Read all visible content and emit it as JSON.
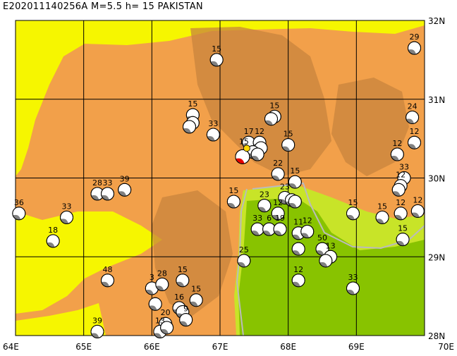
{
  "title": "E202011140256A  M=5.5  h=  15  PAKISTAN",
  "extent": {
    "lon": [
      64,
      70
    ],
    "lat": [
      28,
      32
    ]
  },
  "lon_ticks": [
    {
      "value": 64,
      "label": "64E"
    },
    {
      "value": 65,
      "label": "65E"
    },
    {
      "value": 66,
      "label": "66E"
    },
    {
      "value": 67,
      "label": "67E"
    },
    {
      "value": 68,
      "label": "68E"
    },
    {
      "value": 69,
      "label": "69E"
    },
    {
      "value": 70,
      "label": "70E"
    }
  ],
  "lat_ticks": [
    {
      "value": 32,
      "label": "32N"
    },
    {
      "value": 31,
      "label": "31N"
    },
    {
      "value": 30,
      "label": "30N"
    },
    {
      "value": 29,
      "label": "29N"
    },
    {
      "value": 28,
      "label": "28N"
    }
  ],
  "colors": {
    "lowland": "#f6f600",
    "upland": "#f2a04a",
    "mountain": "#c8843e",
    "valley": "#88c300",
    "valley_light": "#c8e428",
    "border": "#bbbbbb",
    "grid": "#000000",
    "main_event_fill": "#e60000",
    "main_event_marker": "#ffd800",
    "beachball_fill": "#808080"
  },
  "main_event": {
    "lon": 67.33,
    "lat": 30.27,
    "depth": "15"
  },
  "events": [
    {
      "lon": 69.85,
      "lat": 31.65,
      "label": "29"
    },
    {
      "lon": 66.95,
      "lat": 31.5,
      "label": "15"
    },
    {
      "lon": 66.6,
      "lat": 30.8,
      "label": "15"
    },
    {
      "lon": 66.6,
      "lat": 30.7,
      "label": ""
    },
    {
      "lon": 66.55,
      "lat": 30.65,
      "label": ""
    },
    {
      "lon": 66.9,
      "lat": 30.55,
      "label": "33"
    },
    {
      "lon": 67.8,
      "lat": 30.78,
      "label": "15"
    },
    {
      "lon": 67.75,
      "lat": 30.75,
      "label": ""
    },
    {
      "lon": 67.42,
      "lat": 30.45,
      "label": "17"
    },
    {
      "lon": 67.58,
      "lat": 30.45,
      "label": "12"
    },
    {
      "lon": 67.6,
      "lat": 30.38,
      "label": ""
    },
    {
      "lon": 67.48,
      "lat": 30.33,
      "label": ""
    },
    {
      "lon": 67.55,
      "lat": 30.3,
      "label": ""
    },
    {
      "lon": 68.0,
      "lat": 30.42,
      "label": "15"
    },
    {
      "lon": 67.85,
      "lat": 30.05,
      "label": "22"
    },
    {
      "lon": 68.1,
      "lat": 29.95,
      "label": "15"
    },
    {
      "lon": 69.6,
      "lat": 30.3,
      "label": "12"
    },
    {
      "lon": 69.82,
      "lat": 30.77,
      "label": "24"
    },
    {
      "lon": 69.85,
      "lat": 30.45,
      "label": "12"
    },
    {
      "lon": 69.7,
      "lat": 30.0,
      "label": "33"
    },
    {
      "lon": 69.65,
      "lat": 29.9,
      "label": "12"
    },
    {
      "lon": 69.62,
      "lat": 29.85,
      "label": ""
    },
    {
      "lon": 65.2,
      "lat": 29.8,
      "label": "28"
    },
    {
      "lon": 65.35,
      "lat": 29.8,
      "label": "33"
    },
    {
      "lon": 65.6,
      "lat": 29.85,
      "label": "39"
    },
    {
      "lon": 64.05,
      "lat": 29.55,
      "label": "36"
    },
    {
      "lon": 64.75,
      "lat": 29.5,
      "label": "33"
    },
    {
      "lon": 64.55,
      "lat": 29.2,
      "label": "18"
    },
    {
      "lon": 67.2,
      "lat": 29.7,
      "label": "15"
    },
    {
      "lon": 67.65,
      "lat": 29.65,
      "label": "23"
    },
    {
      "lon": 67.95,
      "lat": 29.75,
      "label": "23"
    },
    {
      "lon": 68.05,
      "lat": 29.72,
      "label": ""
    },
    {
      "lon": 68.1,
      "lat": 29.7,
      "label": ""
    },
    {
      "lon": 67.85,
      "lat": 29.55,
      "label": "12"
    },
    {
      "lon": 67.55,
      "lat": 29.35,
      "label": "33"
    },
    {
      "lon": 67.72,
      "lat": 29.35,
      "label": "6"
    },
    {
      "lon": 67.88,
      "lat": 29.35,
      "label": "19"
    },
    {
      "lon": 68.15,
      "lat": 29.3,
      "label": "11"
    },
    {
      "lon": 68.28,
      "lat": 29.32,
      "label": "12"
    },
    {
      "lon": 68.15,
      "lat": 29.1,
      "label": ""
    },
    {
      "lon": 68.5,
      "lat": 29.1,
      "label": "50"
    },
    {
      "lon": 68.62,
      "lat": 29.0,
      "label": "13"
    },
    {
      "lon": 68.55,
      "lat": 28.95,
      "label": ""
    },
    {
      "lon": 68.95,
      "lat": 29.55,
      "label": "15"
    },
    {
      "lon": 69.38,
      "lat": 29.5,
      "label": "15"
    },
    {
      "lon": 69.65,
      "lat": 29.55,
      "label": "12"
    },
    {
      "lon": 69.9,
      "lat": 29.58,
      "label": "12"
    },
    {
      "lon": 69.68,
      "lat": 29.22,
      "label": "15"
    },
    {
      "lon": 67.35,
      "lat": 28.95,
      "label": "25"
    },
    {
      "lon": 68.15,
      "lat": 28.7,
      "label": "12"
    },
    {
      "lon": 68.95,
      "lat": 28.6,
      "label": "33"
    },
    {
      "lon": 65.35,
      "lat": 28.7,
      "label": "48"
    },
    {
      "lon": 66.0,
      "lat": 28.6,
      "label": "3"
    },
    {
      "lon": 66.15,
      "lat": 28.65,
      "label": "28"
    },
    {
      "lon": 66.45,
      "lat": 28.7,
      "label": "15"
    },
    {
      "lon": 66.65,
      "lat": 28.45,
      "label": "15"
    },
    {
      "lon": 66.05,
      "lat": 28.4,
      "label": ""
    },
    {
      "lon": 66.4,
      "lat": 28.35,
      "label": "16"
    },
    {
      "lon": 66.45,
      "lat": 28.3,
      "label": ""
    },
    {
      "lon": 66.5,
      "lat": 28.2,
      "label": "9"
    },
    {
      "lon": 66.2,
      "lat": 28.15,
      "label": "20"
    },
    {
      "lon": 66.12,
      "lat": 28.05,
      "label": "13"
    },
    {
      "lon": 66.22,
      "lat": 28.1,
      "label": ""
    },
    {
      "lon": 65.2,
      "lat": 28.05,
      "label": "39"
    }
  ]
}
